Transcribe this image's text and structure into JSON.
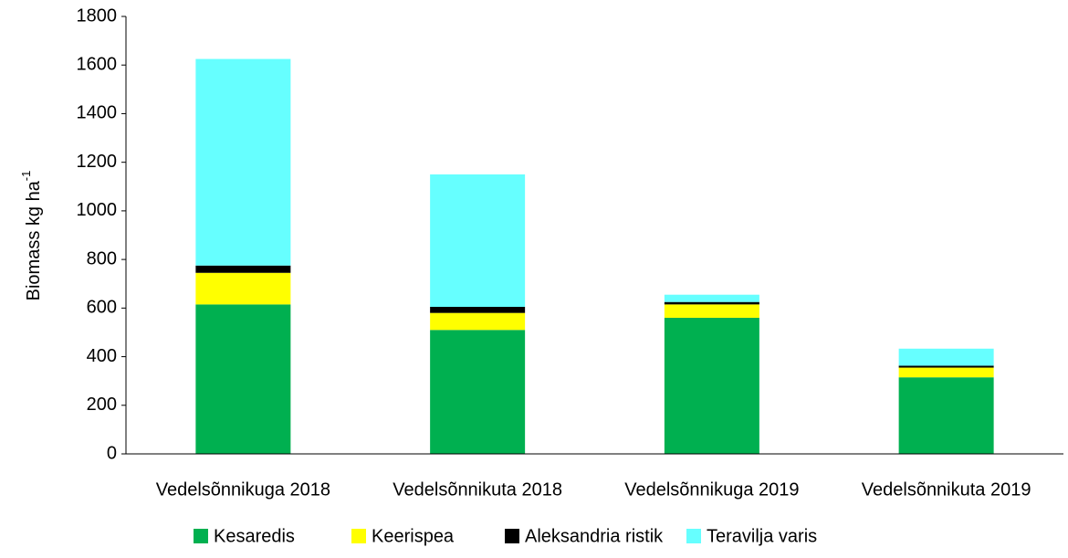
{
  "chart_data": {
    "type": "stacked_bar",
    "y_label": "Biomass kg ha",
    "y_label_superscript": "-1",
    "categories": [
      "Vedelsõnnikuga 2018",
      "Vedelsõnnikuta 2018",
      "Vedelsõnnikuga 2019",
      "Vedelsõnnikuta 2019"
    ],
    "series": [
      {
        "name": "Kesaredis",
        "color": "#00b050",
        "values": [
          615,
          510,
          560,
          315
        ]
      },
      {
        "name": "Keerispea",
        "color": "#ffff00",
        "values": [
          130,
          70,
          55,
          40
        ]
      },
      {
        "name": "Aleksandria ristik",
        "color": "#000000",
        "values": [
          30,
          25,
          10,
          8
        ]
      },
      {
        "name": "Teravilja varis",
        "color": "#66ffff",
        "values": [
          850,
          545,
          30,
          70
        ]
      }
    ],
    "ylim": [
      0,
      1800
    ],
    "yticks": [
      0,
      200,
      400,
      600,
      800,
      1000,
      1200,
      1400,
      1600,
      1800
    ],
    "legend": "bottom"
  }
}
